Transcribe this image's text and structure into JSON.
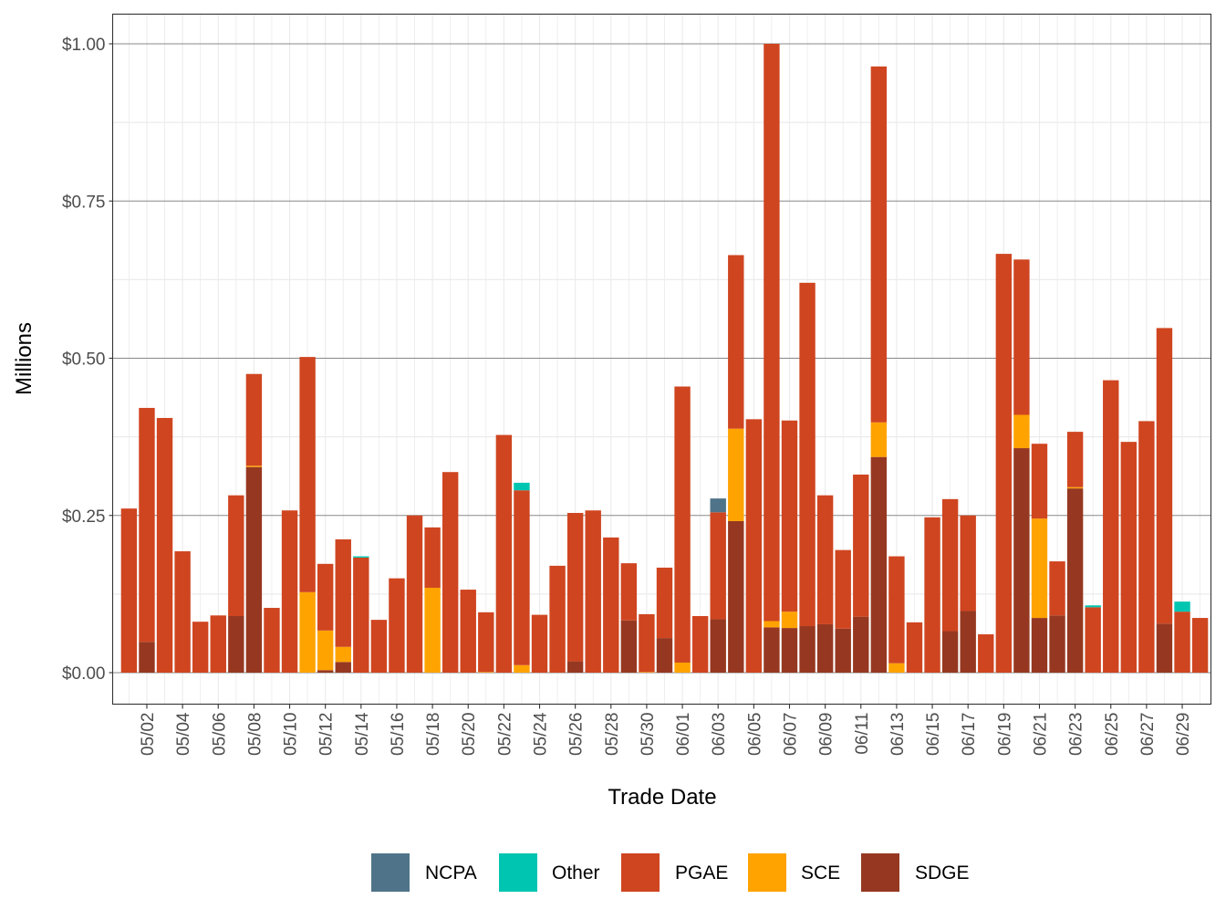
{
  "chart_data": {
    "type": "bar",
    "stacked": true,
    "title": "",
    "xlabel": "Trade Date",
    "ylabel": "Millions",
    "ylim": [
      -0.05,
      1.05
    ],
    "y_ticks": [
      0,
      0.25,
      0.5,
      0.75,
      1.0
    ],
    "y_tick_labels": [
      "$0.00",
      "$0.25",
      "$0.50",
      "$0.75",
      "$1.00"
    ],
    "grid": true,
    "legend_position": "bottom",
    "categories": [
      "05/01",
      "05/02",
      "05/03",
      "05/04",
      "05/05",
      "05/06",
      "05/07",
      "05/08",
      "05/09",
      "05/10",
      "05/11",
      "05/12",
      "05/13",
      "05/14",
      "05/15",
      "05/16",
      "05/17",
      "05/18",
      "05/19",
      "05/20",
      "05/21",
      "05/22",
      "05/23",
      "05/24",
      "05/25",
      "05/26",
      "05/27",
      "05/28",
      "05/29",
      "05/30",
      "05/31",
      "06/01",
      "06/02",
      "06/03",
      "06/04",
      "06/05",
      "06/06",
      "06/07",
      "06/08",
      "06/09",
      "06/10",
      "06/11",
      "06/12",
      "06/13",
      "06/14",
      "06/15",
      "06/16",
      "06/17",
      "06/18",
      "06/19",
      "06/20",
      "06/21",
      "06/22",
      "06/23",
      "06/24",
      "06/25",
      "06/26",
      "06/27",
      "06/28",
      "06/29",
      "06/30"
    ],
    "x_tick_labels": [
      "05/02",
      "05/04",
      "05/06",
      "05/08",
      "05/10",
      "05/12",
      "05/14",
      "05/16",
      "05/18",
      "05/20",
      "05/22",
      "05/24",
      "05/26",
      "05/28",
      "05/30",
      "06/01",
      "06/03",
      "06/05",
      "06/07",
      "06/09",
      "06/11",
      "06/13",
      "06/15",
      "06/17",
      "06/19",
      "06/21",
      "06/23",
      "06/25",
      "06/27",
      "06/29"
    ],
    "stack_order": [
      "SDGE",
      "SCE",
      "PGAE",
      "Other",
      "NCPA"
    ],
    "series": [
      {
        "name": "NCPA",
        "color": "#4F7489",
        "values": [
          0,
          0,
          0,
          0,
          0,
          0,
          0,
          0,
          0,
          0,
          0,
          0,
          0,
          0,
          0,
          0,
          0,
          0,
          0,
          0,
          0,
          0,
          0,
          0,
          0,
          0,
          0,
          0,
          0,
          0,
          0,
          0,
          0,
          0.022,
          0,
          0,
          0,
          0,
          0,
          0,
          0,
          0,
          0,
          0,
          0,
          0,
          0,
          0,
          0,
          0,
          0,
          0,
          0,
          0,
          0,
          0,
          0,
          0,
          0,
          0,
          0
        ]
      },
      {
        "name": "Other",
        "color": "#00C5B0",
        "values": [
          0,
          0,
          0,
          0,
          0,
          0,
          0,
          0,
          0,
          0,
          0,
          0,
          0,
          0.002,
          0,
          0,
          0,
          0,
          0,
          0,
          0,
          0,
          0.012,
          0,
          0,
          0,
          0,
          0,
          0,
          0,
          0,
          0,
          0,
          0,
          0,
          0,
          0,
          0,
          0,
          0,
          0,
          0,
          0,
          0,
          0,
          0,
          0,
          0,
          0,
          0,
          0,
          0,
          0,
          0,
          0.003,
          0,
          0,
          0,
          0,
          0.016,
          0
        ]
      },
      {
        "name": "PGAE",
        "color": "#CF4520",
        "values": [
          0.261,
          0.372,
          0.405,
          0.193,
          0.081,
          0.091,
          0.192,
          0.146,
          0.103,
          0.258,
          0.374,
          0.106,
          0.171,
          0.183,
          0.084,
          0.15,
          0.25,
          0.096,
          0.319,
          0.132,
          0.095,
          0.378,
          0.278,
          0.092,
          0.17,
          0.236,
          0.258,
          0.215,
          0.091,
          0.092,
          0.112,
          0.439,
          0.09,
          0.17,
          0.276,
          0.403,
          0.918,
          0.304,
          0.546,
          0.205,
          0.125,
          0.226,
          0.566,
          0.17,
          0.08,
          0.247,
          0.21,
          0.152,
          0.061,
          0.666,
          0.247,
          0.119,
          0.086,
          0.088,
          0.104,
          0.465,
          0.367,
          0.4,
          0.47,
          0.097,
          0.087
        ]
      },
      {
        "name": "SCE",
        "color": "#FFA300",
        "values": [
          0,
          0,
          0,
          0,
          0,
          0,
          0,
          0.002,
          0,
          0,
          0.128,
          0.063,
          0.024,
          0,
          0,
          0,
          0,
          0.135,
          0,
          0,
          0.001,
          0,
          0.012,
          0,
          0,
          0,
          0,
          0,
          0,
          0.001,
          0,
          0.016,
          0,
          0,
          0.147,
          0,
          0.01,
          0.026,
          0,
          0,
          0,
          0,
          0.055,
          0.015,
          0,
          0,
          0,
          0,
          0,
          0,
          0.053,
          0.158,
          0,
          0.002,
          0,
          0,
          0,
          0,
          0,
          0,
          0
        ]
      },
      {
        "name": "SDGE",
        "color": "#963821",
        "values": [
          0,
          0.049,
          0,
          0,
          0,
          0,
          0.09,
          0.327,
          0,
          0,
          0,
          0.004,
          0.017,
          0,
          0,
          0,
          0,
          0,
          0,
          0,
          0,
          0,
          0,
          0,
          0,
          0.018,
          0,
          0,
          0.083,
          0,
          0.055,
          0,
          0,
          0.085,
          0.241,
          0,
          0.072,
          0.071,
          0.074,
          0.077,
          0.07,
          0.089,
          0.343,
          0,
          0,
          0,
          0.066,
          0.098,
          0,
          0,
          0.357,
          0.087,
          0.091,
          0.293,
          0,
          0,
          0,
          0,
          0.078,
          0,
          0
        ]
      }
    ]
  }
}
